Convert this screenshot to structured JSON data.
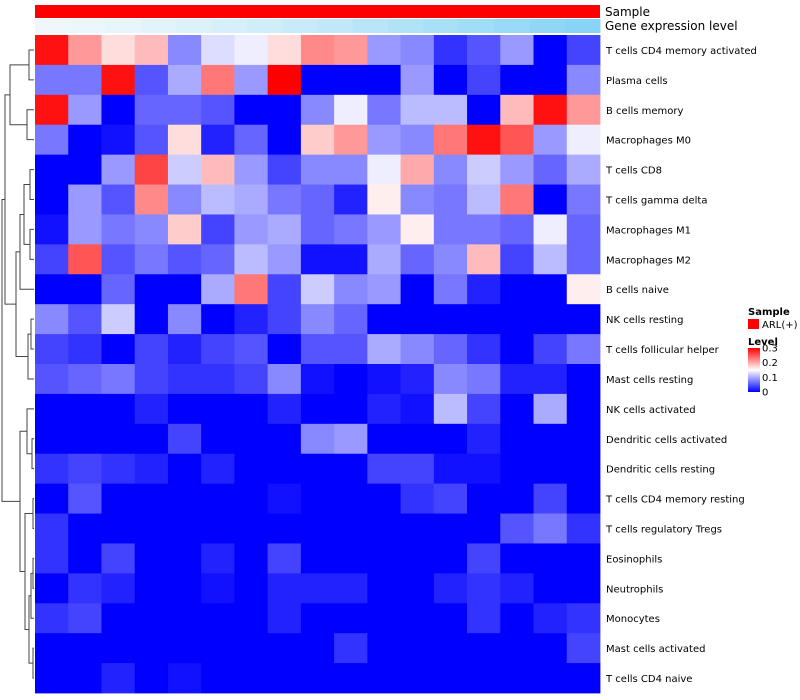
{
  "chart_data": {
    "type": "heatmap",
    "annotation_tracks": [
      {
        "label": "Sample",
        "color": "#ff0000"
      },
      {
        "label": "Gene expression level",
        "colors": [
          "#eef8fb",
          "#ebf7fb",
          "#e7f6fb",
          "#e2f4fb",
          "#dcf2fb",
          "#d6f0fb",
          "#cfeefa",
          "#c8ebfa",
          "#c0e8f9",
          "#b8e5f9",
          "#b0e2f8",
          "#a8e0f8",
          "#a0ddf7",
          "#98daf7",
          "#90d7f6",
          "#88d4f6"
        ]
      }
    ],
    "rows": [
      "T cells CD4 memory activated",
      "Plasma cells",
      "B cells memory",
      "Macrophages M0",
      "T cells CD8",
      "T cells gamma delta",
      "Macrophages M1",
      "Macrophages M2",
      "B cells naive",
      "NK cells resting",
      "T cells follicular helper",
      "Mast cells resting",
      "NK cells activated",
      "Dendritic cells activated",
      "Dendritic cells resting",
      "T cells CD4 memory resting",
      "T cells regulatory  Tregs",
      "Eosinophils",
      "Neutrophils",
      "Monocytes",
      "Mast cells activated",
      "T cells CD4 naive"
    ],
    "n_columns": 17,
    "values": [
      [
        0.29,
        0.21,
        0.17,
        0.19,
        0.08,
        0.13,
        0.14,
        0.17,
        0.22,
        0.21,
        0.09,
        0.08,
        0.03,
        0.05,
        0.09,
        0.0,
        0.04
      ],
      [
        0.07,
        0.07,
        0.29,
        0.05,
        0.1,
        0.23,
        0.09,
        0.3,
        0.0,
        0.0,
        0.0,
        0.09,
        0.0,
        0.04,
        0.0,
        0.0,
        0.08
      ],
      [
        0.29,
        0.09,
        0.0,
        0.06,
        0.06,
        0.05,
        0.0,
        0.0,
        0.08,
        0.14,
        0.07,
        0.11,
        0.11,
        0.0,
        0.19,
        0.29,
        0.21
      ],
      [
        0.07,
        0.0,
        0.01,
        0.05,
        0.17,
        0.02,
        0.06,
        0.0,
        0.18,
        0.21,
        0.09,
        0.08,
        0.23,
        0.29,
        0.25,
        0.09,
        0.14
      ],
      [
        0.0,
        0.0,
        0.09,
        0.26,
        0.12,
        0.19,
        0.09,
        0.04,
        0.08,
        0.08,
        0.14,
        0.2,
        0.08,
        0.12,
        0.09,
        0.06,
        0.1
      ],
      [
        0.0,
        0.09,
        0.05,
        0.22,
        0.08,
        0.11,
        0.1,
        0.07,
        0.06,
        0.02,
        0.16,
        0.08,
        0.07,
        0.11,
        0.23,
        0.0,
        0.07
      ],
      [
        0.01,
        0.09,
        0.07,
        0.08,
        0.18,
        0.04,
        0.09,
        0.1,
        0.06,
        0.07,
        0.09,
        0.16,
        0.07,
        0.07,
        0.06,
        0.14,
        0.06
      ],
      [
        0.04,
        0.25,
        0.05,
        0.07,
        0.05,
        0.06,
        0.11,
        0.09,
        0.01,
        0.01,
        0.1,
        0.06,
        0.08,
        0.19,
        0.04,
        0.11,
        0.06
      ],
      [
        0.0,
        0.0,
        0.06,
        0.0,
        0.0,
        0.1,
        0.23,
        0.04,
        0.12,
        0.08,
        0.09,
        0.0,
        0.07,
        0.02,
        0.0,
        0.0,
        0.16
      ],
      [
        0.08,
        0.05,
        0.12,
        0.0,
        0.08,
        0.0,
        0.02,
        0.04,
        0.08,
        0.06,
        0.0,
        0.0,
        0.0,
        0.0,
        0.0,
        0.0,
        0.0
      ],
      [
        0.04,
        0.03,
        0.0,
        0.04,
        0.02,
        0.04,
        0.05,
        0.0,
        0.05,
        0.05,
        0.1,
        0.08,
        0.06,
        0.03,
        0.0,
        0.04,
        0.07
      ],
      [
        0.05,
        0.06,
        0.07,
        0.04,
        0.03,
        0.03,
        0.04,
        0.08,
        0.01,
        0.0,
        0.01,
        0.02,
        0.08,
        0.07,
        0.02,
        0.02,
        0.0
      ],
      [
        0.0,
        0.0,
        0.0,
        0.02,
        0.0,
        0.0,
        0.0,
        0.02,
        0.0,
        0.0,
        0.02,
        0.01,
        0.11,
        0.04,
        0.0,
        0.1,
        0.0
      ],
      [
        0.0,
        0.0,
        0.0,
        0.0,
        0.04,
        0.0,
        0.0,
        0.0,
        0.08,
        0.09,
        0.0,
        0.0,
        0.0,
        0.02,
        0.0,
        0.0,
        0.0
      ],
      [
        0.03,
        0.04,
        0.03,
        0.02,
        0.0,
        0.02,
        0.0,
        0.0,
        0.0,
        0.0,
        0.04,
        0.04,
        0.01,
        0.01,
        0.0,
        0.0,
        0.0
      ],
      [
        0.0,
        0.05,
        0.0,
        0.0,
        0.0,
        0.0,
        0.0,
        0.01,
        0.0,
        0.0,
        0.0,
        0.03,
        0.04,
        0.0,
        0.0,
        0.04,
        0.0
      ],
      [
        0.03,
        0.0,
        0.0,
        0.0,
        0.0,
        0.0,
        0.0,
        0.0,
        0.0,
        0.0,
        0.0,
        0.0,
        0.0,
        0.0,
        0.05,
        0.07,
        0.03
      ],
      [
        0.03,
        0.0,
        0.04,
        0.0,
        0.0,
        0.02,
        0.0,
        0.04,
        0.0,
        0.0,
        0.0,
        0.0,
        0.0,
        0.04,
        0.0,
        0.0,
        0.0
      ],
      [
        0.0,
        0.03,
        0.02,
        0.0,
        0.0,
        0.01,
        0.0,
        0.02,
        0.02,
        0.02,
        0.0,
        0.0,
        0.02,
        0.03,
        0.02,
        0.0,
        0.0
      ],
      [
        0.03,
        0.04,
        0.0,
        0.0,
        0.0,
        0.0,
        0.0,
        0.02,
        0.0,
        0.0,
        0.0,
        0.0,
        0.0,
        0.03,
        0.0,
        0.02,
        0.03
      ],
      [
        0.0,
        0.0,
        0.0,
        0.0,
        0.0,
        0.0,
        0.0,
        0.0,
        0.0,
        0.03,
        0.0,
        0.0,
        0.0,
        0.0,
        0.0,
        0.0,
        0.04
      ],
      [
        0.0,
        0.0,
        0.02,
        0.0,
        0.01,
        0.0,
        0.0,
        0.0,
        0.0,
        0.0,
        0.0,
        0.0,
        0.0,
        0.0,
        0.0,
        0.0,
        0.0
      ]
    ],
    "color_scale": {
      "low": "#0000ff",
      "mid": "#ffffff",
      "high": "#ff0000",
      "min": 0,
      "mid_value": 0.15,
      "max": 0.3
    },
    "legend": {
      "sample_title": "Sample",
      "sample_entry": "ARL(+)",
      "sample_color": "#ff0000",
      "level_title": "Level",
      "ticks": [
        "0.3",
        "0.2",
        "0.1",
        "0"
      ],
      "tick_values": [
        0.3,
        0.2,
        0.1,
        0
      ]
    }
  }
}
